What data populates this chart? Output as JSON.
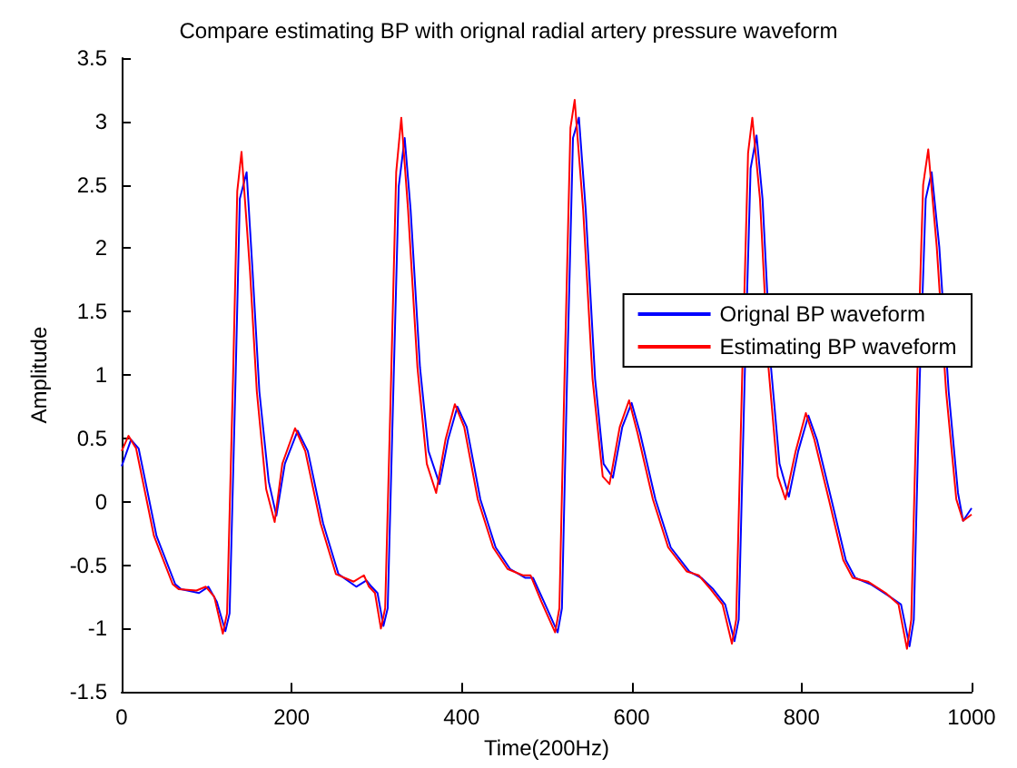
{
  "chart_data": {
    "type": "line",
    "title": "Compare estimating BP with orignal radial artery pressure waveform",
    "xlabel": "Time(200Hz)",
    "ylabel": "Amplitude",
    "xlim": [
      0,
      1000
    ],
    "xticks": [
      0,
      200,
      400,
      600,
      800,
      1000
    ],
    "ylim": [
      -1.5,
      3.5
    ],
    "yticks": [
      -1.5,
      -1,
      -0.5,
      0,
      0.5,
      1,
      1.5,
      2,
      2.5,
      3,
      3.5
    ],
    "grid": false,
    "legend": "right",
    "marker": "none",
    "line_style": "solid",
    "series": [
      {
        "name": "Orignal BP waveform",
        "color": "#0000ff",
        "x": [
          0,
          11,
          20,
          41,
          63,
          70,
          91,
          102,
          112,
          122,
          127,
          134,
          139,
          147,
          154,
          162,
          173,
          182,
          192,
          207,
          219,
          237,
          255,
          276,
          288,
          294,
          301,
          308,
          313,
          320,
          326,
          333,
          340,
          351,
          361,
          374,
          384,
          395,
          406,
          422,
          440,
          457,
          475,
          484,
          497,
          513,
          518,
          524,
          531,
          538,
          546,
          557,
          567,
          578,
          589,
          600,
          610,
          628,
          646,
          668,
          682,
          696,
          710,
          721,
          726,
          733,
          740,
          747,
          754,
          764,
          774,
          785,
          796,
          808,
          818,
          835,
          852,
          863,
          881,
          902,
          917,
          927,
          932,
          939,
          946,
          953,
          962,
          973,
          984,
          990,
          1000
        ],
        "values": [
          0.28,
          0.49,
          0.42,
          -0.27,
          -0.65,
          -0.69,
          -0.72,
          -0.67,
          -0.79,
          -1.02,
          -0.88,
          0.97,
          2.39,
          2.6,
          1.82,
          0.87,
          0.16,
          -0.11,
          0.3,
          0.56,
          0.4,
          -0.17,
          -0.57,
          -0.67,
          -0.62,
          -0.67,
          -0.72,
          -0.98,
          -0.84,
          0.97,
          2.49,
          2.87,
          2.3,
          1.06,
          0.4,
          0.14,
          0.49,
          0.75,
          0.59,
          0.02,
          -0.36,
          -0.53,
          -0.6,
          -0.6,
          -0.79,
          -1.03,
          -0.84,
          0.97,
          2.87,
          3.03,
          2.3,
          0.97,
          0.3,
          0.19,
          0.59,
          0.78,
          0.54,
          0.02,
          -0.36,
          -0.55,
          -0.6,
          -0.69,
          -0.81,
          -1.1,
          -0.93,
          0.97,
          2.63,
          2.89,
          2.39,
          1.06,
          0.3,
          0.04,
          0.4,
          0.68,
          0.49,
          0.02,
          -0.46,
          -0.6,
          -0.65,
          -0.74,
          -0.81,
          -1.14,
          -0.93,
          0.97,
          2.39,
          2.6,
          2.01,
          0.87,
          0.07,
          -0.15,
          -0.05
        ]
      },
      {
        "name": "Estimating BP waveform",
        "color": "#ff0000",
        "x": [
          0,
          8,
          17,
          38,
          60,
          67,
          88,
          99,
          109,
          119,
          124,
          131,
          136,
          141,
          151,
          159,
          170,
          180,
          189,
          204,
          216,
          234,
          252,
          273,
          285,
          291,
          298,
          305,
          310,
          317,
          323,
          329,
          337,
          348,
          359,
          370,
          381,
          392,
          403,
          419,
          437,
          454,
          472,
          481,
          494,
          510,
          515,
          521,
          528,
          533,
          543,
          554,
          566,
          574,
          586,
          597,
          607,
          625,
          643,
          665,
          679,
          693,
          707,
          718,
          723,
          730,
          737,
          742,
          751,
          761,
          772,
          781,
          793,
          805,
          815,
          832,
          849,
          860,
          878,
          899,
          914,
          924,
          929,
          936,
          943,
          949,
          959,
          970,
          982,
          990,
          1000
        ],
        "values": [
          0.4,
          0.52,
          0.42,
          -0.27,
          -0.65,
          -0.69,
          -0.7,
          -0.67,
          -0.75,
          -1.04,
          -0.88,
          0.97,
          2.45,
          2.76,
          1.82,
          0.87,
          0.1,
          -0.16,
          0.3,
          0.58,
          0.4,
          -0.17,
          -0.57,
          -0.63,
          -0.58,
          -0.67,
          -0.72,
          -1.0,
          -0.84,
          0.97,
          2.6,
          3.03,
          2.3,
          1.06,
          0.3,
          0.07,
          0.49,
          0.77,
          0.59,
          0.02,
          -0.36,
          -0.53,
          -0.58,
          -0.58,
          -0.79,
          -1.03,
          -0.84,
          0.97,
          2.95,
          3.17,
          2.3,
          0.97,
          0.2,
          0.14,
          0.59,
          0.8,
          0.54,
          0.02,
          -0.36,
          -0.55,
          -0.58,
          -0.69,
          -0.81,
          -1.12,
          -0.93,
          0.97,
          2.75,
          3.03,
          2.39,
          1.06,
          0.2,
          0.02,
          0.4,
          0.7,
          0.49,
          0.02,
          -0.46,
          -0.6,
          -0.63,
          -0.72,
          -0.81,
          -1.16,
          -0.93,
          0.97,
          2.5,
          2.78,
          2.01,
          0.87,
          0.02,
          -0.15,
          -0.1
        ]
      }
    ]
  }
}
